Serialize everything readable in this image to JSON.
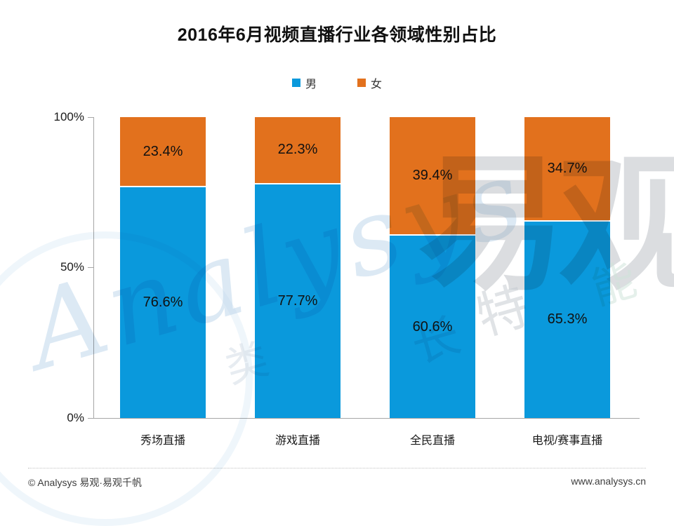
{
  "title": "2016年6月视频直播行业各领域性别占比",
  "legend": [
    {
      "label": "男",
      "color": "#0A99DC"
    },
    {
      "label": "女",
      "color": "#E2711D"
    }
  ],
  "chart_data": {
    "type": "bar",
    "stacked": true,
    "title": "2016年6月视频直播行业各领域性别占比",
    "categories": [
      "秀场直播",
      "游戏直播",
      "全民直播",
      "电视/赛事直播"
    ],
    "series": [
      {
        "name": "男",
        "color": "#0A99DC",
        "values": [
          76.6,
          77.7,
          60.6,
          65.3
        ]
      },
      {
        "name": "女",
        "color": "#E2711D",
        "values": [
          23.4,
          22.3,
          39.4,
          34.7
        ]
      }
    ],
    "value_suffix": "%",
    "xlabel": "",
    "ylabel": "",
    "ylim": [
      0,
      100
    ],
    "yticks": [
      "0%",
      "50%",
      "100%"
    ],
    "grid": false,
    "legend_position": "top",
    "data_labels": true
  },
  "watermark": {
    "script_text": "Analysys",
    "brand_text": "易观",
    "char_1": "特",
    "char_2": "长",
    "char_3": "类",
    "char_4": "能"
  },
  "footer": {
    "left": "© Analysys 易观·易观千帆",
    "right": "www.analysys.cn"
  }
}
